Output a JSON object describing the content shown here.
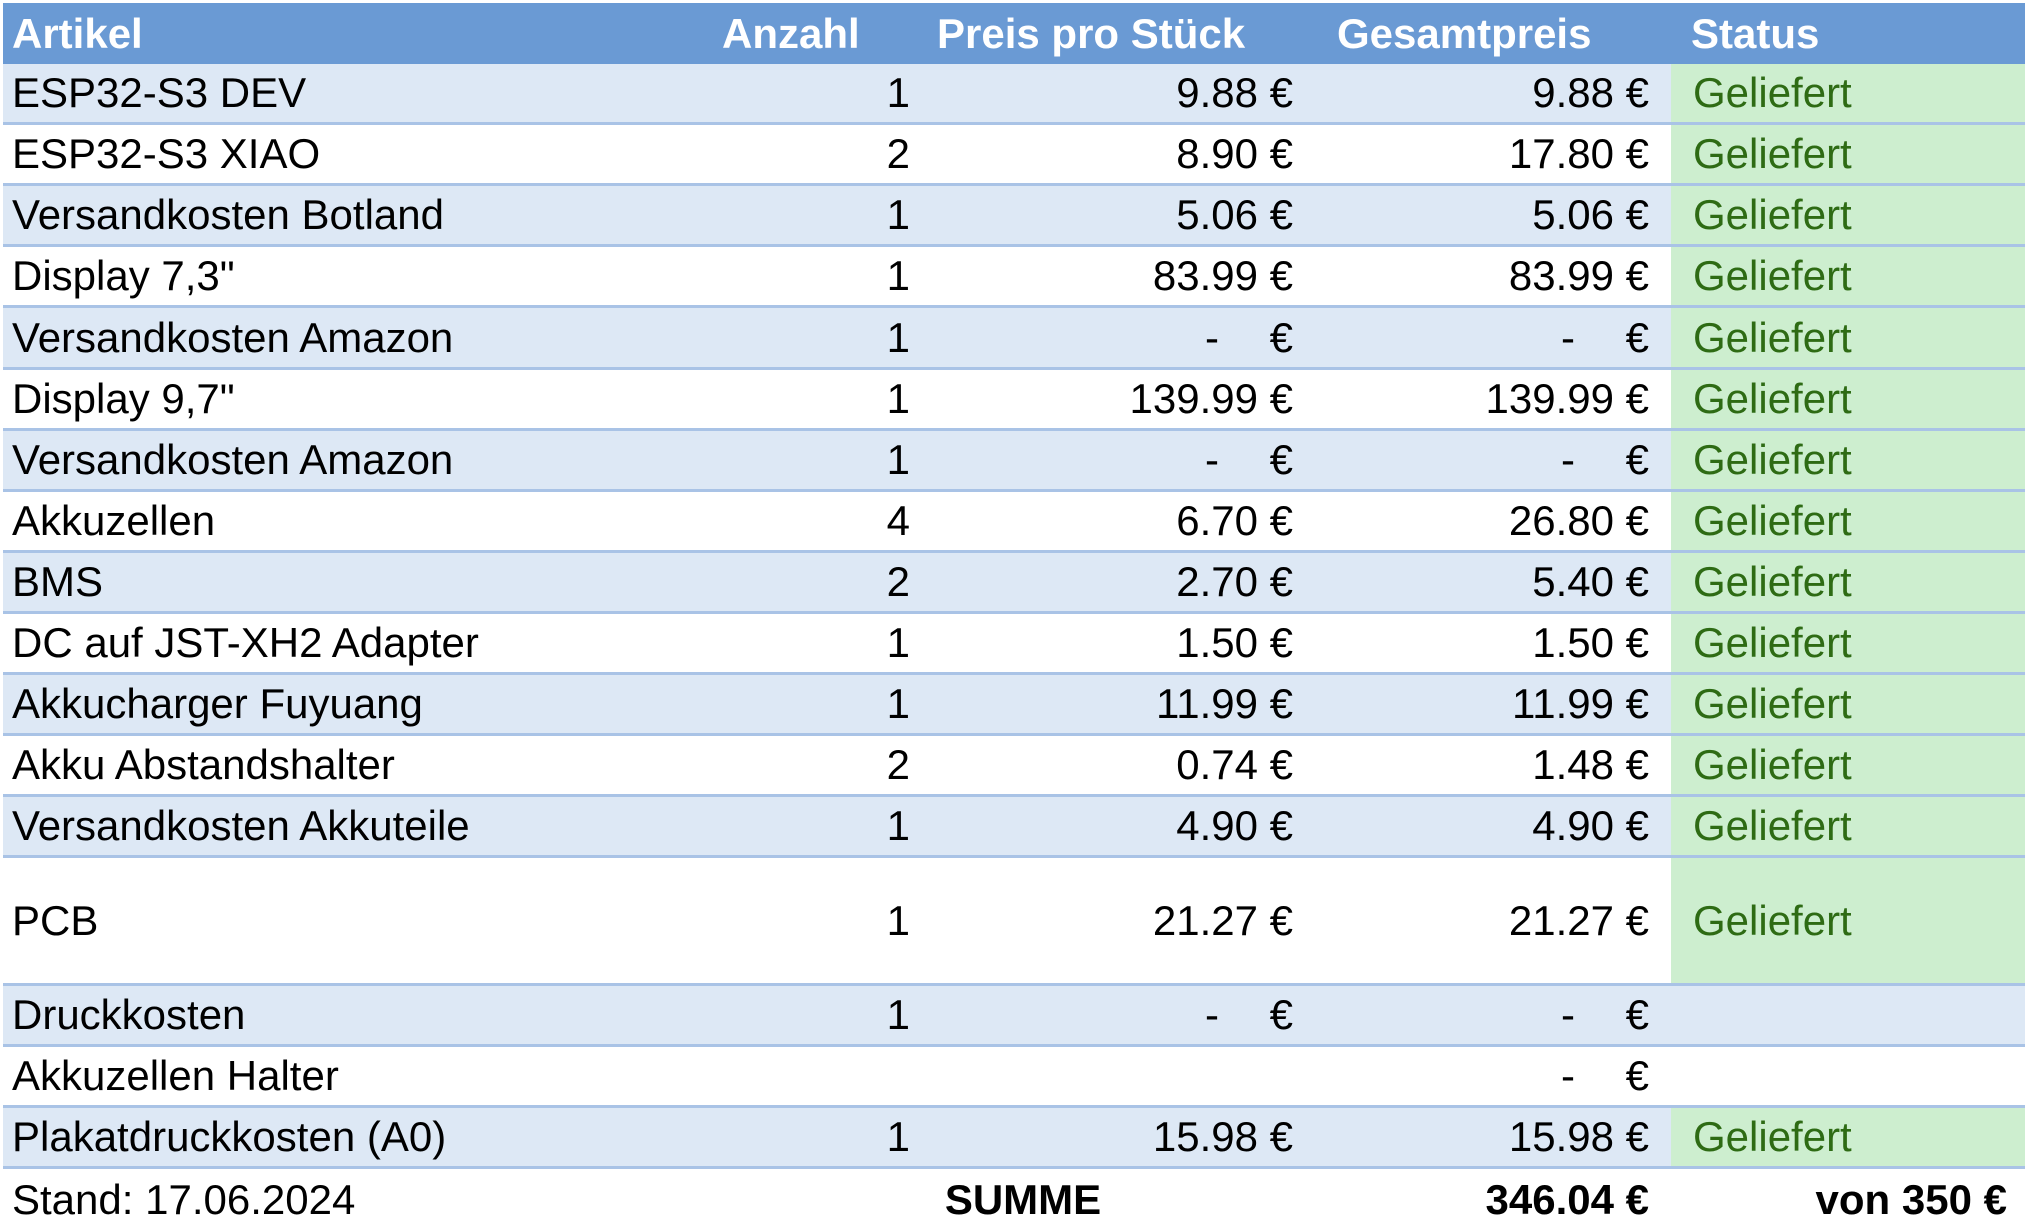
{
  "header": {
    "artikel": "Artikel",
    "anzahl": "Anzahl",
    "preis": "Preis pro Stück",
    "gesamt": "Gesamtpreis",
    "status": "Status"
  },
  "rows": [
    {
      "artikel": "ESP32-S3 DEV",
      "anzahl": "1",
      "preis": "9.88 €",
      "gesamt": "9.88 €",
      "status": "Geliefert"
    },
    {
      "artikel": "ESP32-S3 XIAO",
      "anzahl": "2",
      "preis": "8.90 €",
      "gesamt": "17.80 €",
      "status": "Geliefert"
    },
    {
      "artikel": "Versandkosten Botland",
      "anzahl": "1",
      "preis": "5.06 €",
      "gesamt": "5.06 €",
      "status": "Geliefert"
    },
    {
      "artikel": "Display 7,3\"",
      "anzahl": "1",
      "preis": "83.99 €",
      "gesamt": "83.99 €",
      "status": "Geliefert"
    },
    {
      "artikel": "Versandkosten Amazon",
      "anzahl": "1",
      "preis": "-",
      "gesamt": "-",
      "status": "Geliefert"
    },
    {
      "artikel": "Display 9,7\"",
      "anzahl": "1",
      "preis": "139.99 €",
      "gesamt": "139.99 €",
      "status": "Geliefert"
    },
    {
      "artikel": "Versandkosten Amazon",
      "anzahl": "1",
      "preis": "-",
      "gesamt": "-",
      "status": "Geliefert"
    },
    {
      "artikel": "Akkuzellen",
      "anzahl": "4",
      "preis": "6.70 €",
      "gesamt": "26.80 €",
      "status": "Geliefert"
    },
    {
      "artikel": "BMS",
      "anzahl": "2",
      "preis": "2.70 €",
      "gesamt": "5.40 €",
      "status": "Geliefert"
    },
    {
      "artikel": "DC auf JST-XH2 Adapter",
      "anzahl": "1",
      "preis": "1.50 €",
      "gesamt": "1.50 €",
      "status": "Geliefert"
    },
    {
      "artikel": "Akkucharger Fuyuang",
      "anzahl": "1",
      "preis": "11.99 €",
      "gesamt": "11.99 €",
      "status": "Geliefert"
    },
    {
      "artikel": "Akku Abstandshalter",
      "anzahl": "2",
      "preis": "0.74 €",
      "gesamt": "1.48 €",
      "status": "Geliefert"
    },
    {
      "artikel": "Versandkosten Akkuteile",
      "anzahl": "1",
      "preis": "4.90 €",
      "gesamt": "4.90 €",
      "status": "Geliefert"
    },
    {
      "artikel": "PCB",
      "anzahl": "1",
      "preis": "21.27 €",
      "gesamt": "21.27 €",
      "status": "Geliefert"
    },
    {
      "artikel": "Druckkosten",
      "anzahl": "1",
      "preis": "-",
      "gesamt": "-",
      "status": ""
    },
    {
      "artikel": "Akkuzellen Halter",
      "anzahl": "",
      "preis": "",
      "gesamt": "-",
      "status": ""
    },
    {
      "artikel": "Plakatdruckkosten (A0)",
      "anzahl": "1",
      "preis": "15.98 €",
      "gesamt": "15.98 €",
      "status": "Geliefert"
    }
  ],
  "footer": {
    "stand": "Stand: 17.06.2024",
    "summe_label": "SUMME",
    "summe": "346.04 €",
    "budget": "von 350 €"
  },
  "currency_symbol": "€",
  "colors": {
    "header_bg": "#6a9ad4",
    "band_bg": "#dde8f5",
    "status_bg": "#cdeecf",
    "status_text": "#2e6b14",
    "row_border": "#a9c3e6"
  }
}
